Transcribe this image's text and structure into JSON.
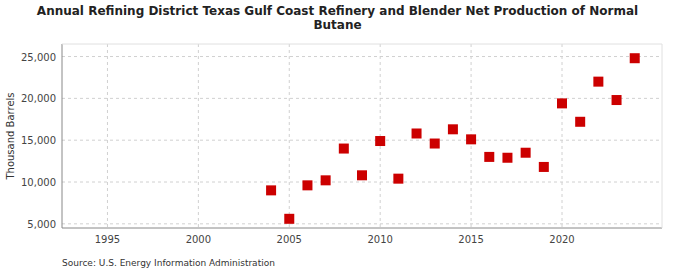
{
  "chart_data": {
    "type": "scatter",
    "title": "Annual Refining District Texas Gulf Coast Refinery and Blender Net Production of Normal\nButane",
    "y_label": "Thousand Barrels",
    "source": "Source: U.S. Energy Information Administration",
    "color": "#cc0000",
    "marker": "square",
    "grid": true,
    "xlim": [
      1992.5,
      2025.5
    ],
    "ylim": [
      4500,
      26500
    ],
    "xticks": [
      1995,
      2000,
      2005,
      2010,
      2015,
      2020
    ],
    "yticks": [
      {
        "value": 5000,
        "label": "5,000"
      },
      {
        "value": 10000,
        "label": "10,000"
      },
      {
        "value": 15000,
        "label": "15,000"
      },
      {
        "value": 20000,
        "label": "20,000"
      },
      {
        "value": 25000,
        "label": "25,000"
      }
    ],
    "x": [
      2004,
      2005,
      2006,
      2007,
      2008,
      2009,
      2010,
      2011,
      2012,
      2013,
      2014,
      2015,
      2016,
      2017,
      2018,
      2019,
      2020,
      2021,
      2022,
      2023,
      2024
    ],
    "values": [
      9000,
      5600,
      9600,
      10200,
      14000,
      10800,
      14900,
      10400,
      15800,
      14600,
      16300,
      15100,
      13000,
      12900,
      13500,
      11800,
      19400,
      17200,
      22000,
      19800,
      24800
    ]
  }
}
